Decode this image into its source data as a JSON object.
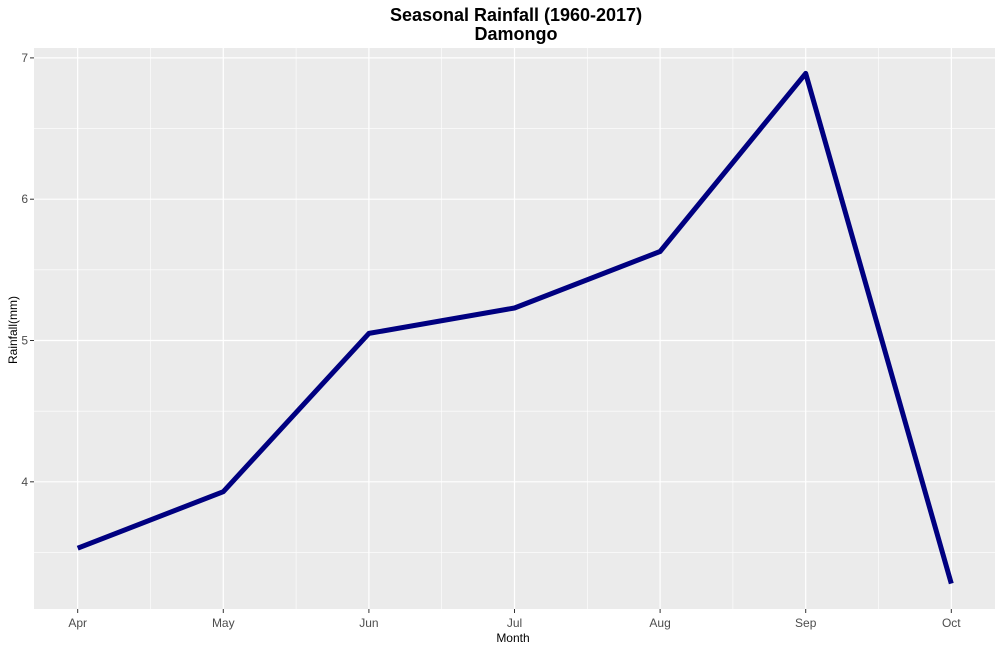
{
  "chart_data": {
    "type": "line",
    "title": "Seasonal Rainfall (1960-2017)",
    "subtitle": "Damongo",
    "xlabel": "Month",
    "ylabel": "Rainfall(mm)",
    "categories": [
      "Apr",
      "May",
      "Jun",
      "Jul",
      "Aug",
      "Sep",
      "Oct"
    ],
    "series": [
      {
        "values": [
          3.53,
          3.93,
          5.05,
          5.23,
          5.63,
          6.89,
          3.28
        ]
      }
    ],
    "ylim": [
      3.1,
      7.07
    ],
    "yticks": [
      4,
      5,
      6,
      7
    ],
    "grid": true,
    "legend": "none",
    "colors": {
      "panel": "#ebebeb",
      "grid": "#ffffff",
      "line": "#000080"
    }
  }
}
